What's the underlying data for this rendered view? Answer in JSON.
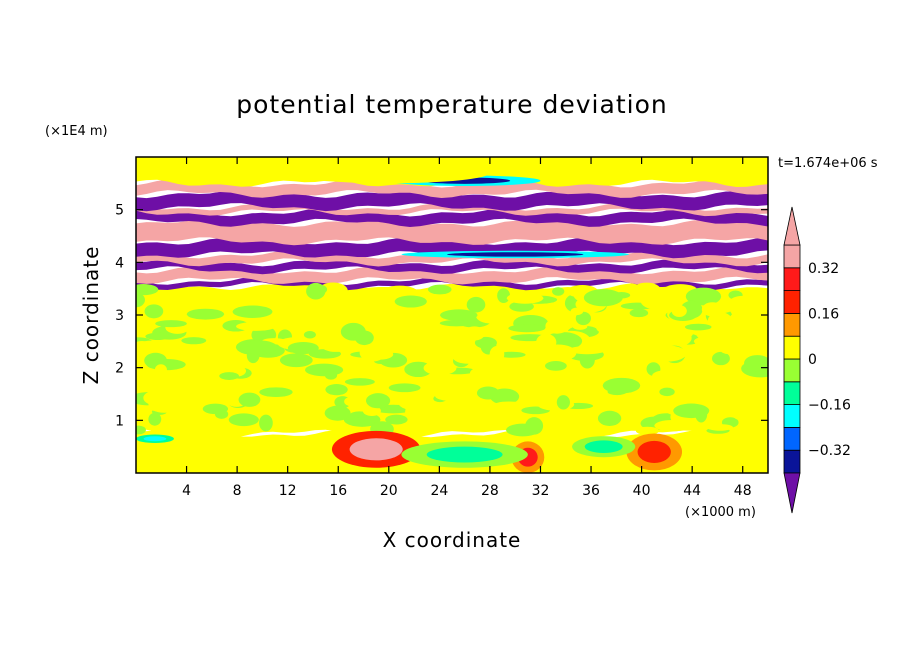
{
  "chart_data": {
    "type": "heatmap",
    "title": "potential temperature deviation",
    "xlabel": "X coordinate",
    "ylabel": "Z coordinate",
    "x_unit": "(×1000 m)",
    "y_unit": "(×1E4 m)",
    "time_label": "t=1.674e+06 s",
    "xlim": [
      0,
      50
    ],
    "ylim": [
      0,
      6
    ],
    "x_ticks": [
      4,
      8,
      12,
      16,
      20,
      24,
      28,
      32,
      36,
      40,
      44,
      48
    ],
    "y_ticks": [
      1,
      2,
      3,
      4,
      5
    ],
    "colorbar": {
      "levels": [
        -0.4,
        -0.32,
        -0.24,
        -0.16,
        -0.08,
        0,
        0.08,
        0.16,
        0.24,
        0.32,
        0.4
      ],
      "labels": [
        "0.32",
        "0.16",
        "0",
        "−0.16",
        "−0.32"
      ],
      "label_values": [
        0.32,
        0.16,
        0,
        -0.16,
        -0.32
      ],
      "colors": [
        "#6e0fa6",
        "#0a1499",
        "#0066ff",
        "#00ffff",
        "#00ff99",
        "#99ff33",
        "#ffff00",
        "#ff9900",
        "#ff2200",
        "#ff1a1a",
        "#f5a5a5"
      ],
      "under_color": "#6e0fa6",
      "over_color": "#f5a5a5"
    },
    "layers": [
      {
        "z": [
          0.0,
          0.75
        ],
        "value": 0.04
      },
      {
        "z": [
          0.75,
          3.55
        ],
        "value": 0.02
      },
      {
        "z": [
          3.55,
          3.65
        ],
        "value": -0.45
      },
      {
        "z": [
          3.65,
          3.85
        ],
        "value": 0.45
      },
      {
        "z": [
          3.85,
          4.0
        ],
        "value": -0.45
      },
      {
        "z": [
          4.0,
          4.15
        ],
        "value": 0.45
      },
      {
        "z": [
          4.15,
          4.4
        ],
        "value": -0.45
      },
      {
        "z": [
          4.4,
          4.75
        ],
        "value": 0.45
      },
      {
        "z": [
          4.75,
          4.95
        ],
        "value": -0.45
      },
      {
        "z": [
          4.95,
          5.05
        ],
        "value": 0.45
      },
      {
        "z": [
          5.05,
          5.3
        ],
        "value": -0.45
      },
      {
        "z": [
          5.3,
          5.5
        ],
        "value": 0.45
      },
      {
        "z": [
          5.5,
          6.0
        ],
        "value": 0.04
      }
    ],
    "features": [
      {
        "x": 19,
        "z": 0.45,
        "rx": 3.5,
        "rz": 0.35,
        "value": 0.33
      },
      {
        "x": 31,
        "z": 0.3,
        "rx": 1.3,
        "rz": 0.3,
        "value": 0.25
      },
      {
        "x": 41,
        "z": 0.4,
        "rx": 2.2,
        "rz": 0.35,
        "value": 0.22
      },
      {
        "x": 26,
        "z": 0.35,
        "rx": 5.0,
        "rz": 0.25,
        "value": -0.12
      },
      {
        "x": 37,
        "z": 0.5,
        "rx": 2.5,
        "rz": 0.2,
        "value": -0.12
      },
      {
        "x": 1.5,
        "z": 0.65,
        "rx": 1.5,
        "rz": 0.08,
        "value": -0.2
      },
      {
        "x": 26,
        "z": 5.55,
        "rx": 6.0,
        "rz": 0.1,
        "value": -0.35
      },
      {
        "x": 30,
        "z": 4.15,
        "rx": 9.0,
        "rz": 0.07,
        "value": -0.35
      },
      {
        "x": 20,
        "z": 5.7,
        "rx": 8.0,
        "rz": 0.2,
        "value": 0.0
      }
    ]
  }
}
